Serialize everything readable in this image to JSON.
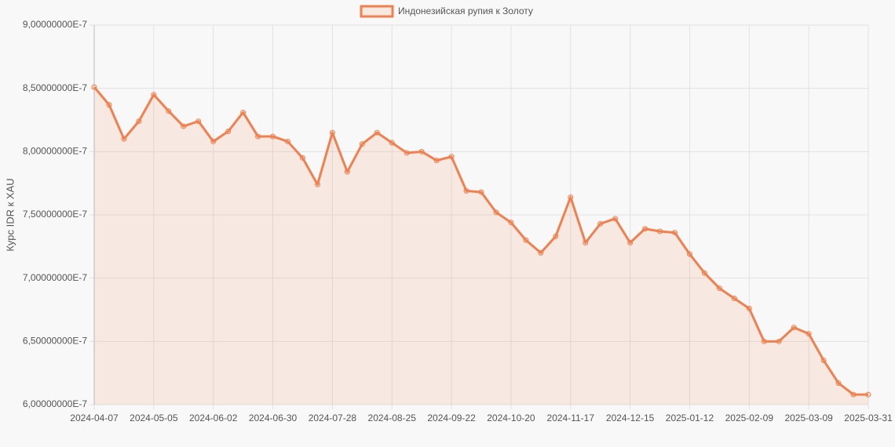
{
  "chart_data": {
    "type": "line",
    "area": true,
    "y_label": "Курс IDR к XAU",
    "series": [
      {
        "name": "Индонезийская рупия к Золоту",
        "color": "#f0804f",
        "fill": "rgba(240,128,79,0.13)",
        "values": [
          8.51e-07,
          8.37e-07,
          8.1e-07,
          8.24e-07,
          8.45e-07,
          8.32e-07,
          8.2e-07,
          8.24e-07,
          8.08e-07,
          8.16e-07,
          8.31e-07,
          8.12e-07,
          8.12e-07,
          8.08e-07,
          7.95e-07,
          7.74e-07,
          8.15e-07,
          7.84e-07,
          8.06e-07,
          8.15e-07,
          8.07e-07,
          7.99e-07,
          8e-07,
          7.93e-07,
          7.96e-07,
          7.69e-07,
          7.68e-07,
          7.52e-07,
          7.44e-07,
          7.3e-07,
          7.2e-07,
          7.33e-07,
          7.64e-07,
          7.28e-07,
          7.43e-07,
          7.47e-07,
          7.28e-07,
          7.39e-07,
          7.37e-07,
          7.36e-07,
          7.19e-07,
          7.04e-07,
          6.92e-07,
          6.84e-07,
          6.76e-07,
          6.5e-07,
          6.5e-07,
          6.61e-07,
          6.56e-07,
          6.35e-07,
          6.17e-07,
          6.08e-07,
          6.08e-07
        ]
      }
    ],
    "categories": [
      "2024-04-07",
      null,
      null,
      null,
      "2024-05-05",
      null,
      null,
      null,
      "2024-06-02",
      null,
      null,
      null,
      "2024-06-30",
      null,
      null,
      null,
      "2024-07-28",
      null,
      null,
      null,
      "2024-08-25",
      null,
      null,
      null,
      "2024-09-22",
      null,
      null,
      null,
      "2024-10-20",
      null,
      null,
      null,
      "2024-11-17",
      null,
      null,
      null,
      "2024-12-15",
      null,
      null,
      null,
      "2025-01-12",
      null,
      null,
      null,
      "2025-02-09",
      null,
      null,
      null,
      "2025-03-09",
      null,
      null,
      null,
      "2025-03-31"
    ],
    "ylim": [
      6e-07,
      9e-07
    ],
    "yticks": [
      {
        "value": 6e-07,
        "label": "6,00000000E-7"
      },
      {
        "value": 6.5e-07,
        "label": "6,50000000E-7"
      },
      {
        "value": 7e-07,
        "label": "7,00000000E-7"
      },
      {
        "value": 7.5e-07,
        "label": "7,50000000E-7"
      },
      {
        "value": 8e-07,
        "label": "8,00000000E-7"
      },
      {
        "value": 8.5e-07,
        "label": "8,50000000E-7"
      },
      {
        "value": 9e-07,
        "label": "9,00000000E-7"
      }
    ],
    "grid": true,
    "legend": "top"
  }
}
